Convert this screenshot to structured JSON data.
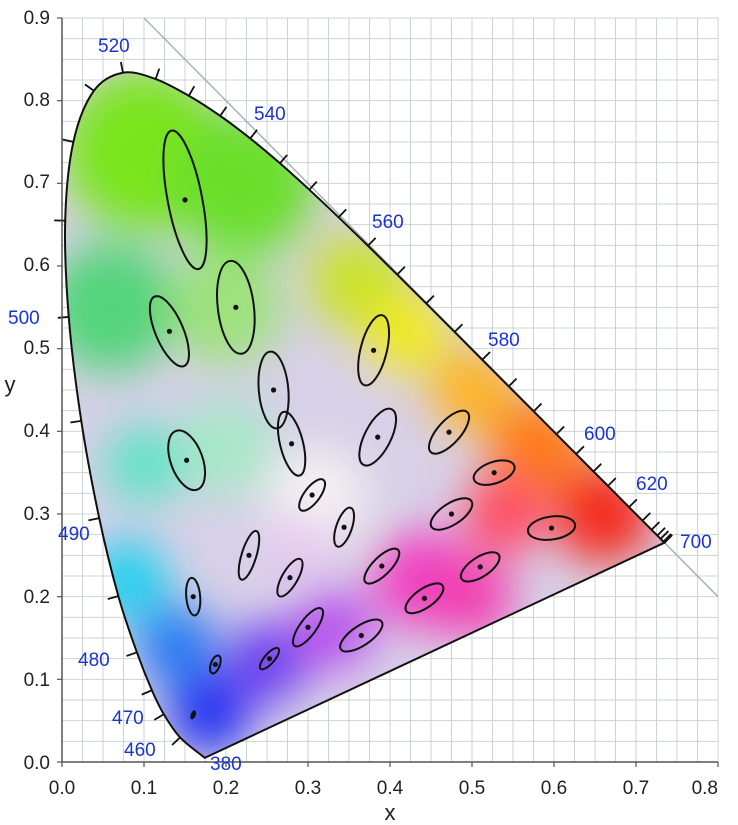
{
  "chart_data": {
    "type": "scatter",
    "title": "",
    "xlabel": "x",
    "ylabel": "y",
    "xlim": [
      0,
      0.8
    ],
    "ylim": [
      0,
      0.9
    ],
    "x_ticks": [
      "0.0",
      "0.1",
      "0.2",
      "0.3",
      "0.4",
      "0.5",
      "0.6",
      "0.7",
      "0.8"
    ],
    "y_ticks": [
      "0.0",
      "0.1",
      "0.2",
      "0.3",
      "0.4",
      "0.5",
      "0.6",
      "0.7",
      "0.8",
      "0.9"
    ],
    "grid_step": 0.025,
    "grid": true,
    "spectral_locus": [
      {
        "nm": 380,
        "x": 0.1741,
        "y": 0.005
      },
      {
        "nm": 460,
        "x": 0.144,
        "y": 0.0297
      },
      {
        "nm": 470,
        "x": 0.1241,
        "y": 0.0578
      },
      {
        "nm": 475,
        "x": 0.1096,
        "y": 0.0868
      },
      {
        "nm": 480,
        "x": 0.0913,
        "y": 0.1327
      },
      {
        "nm": 485,
        "x": 0.0687,
        "y": 0.2007
      },
      {
        "nm": 490,
        "x": 0.0454,
        "y": 0.295
      },
      {
        "nm": 495,
        "x": 0.0235,
        "y": 0.4127
      },
      {
        "nm": 500,
        "x": 0.0082,
        "y": 0.5384
      },
      {
        "nm": 505,
        "x": 0.0039,
        "y": 0.6548
      },
      {
        "nm": 510,
        "x": 0.0139,
        "y": 0.7502
      },
      {
        "nm": 515,
        "x": 0.0389,
        "y": 0.812
      },
      {
        "nm": 520,
        "x": 0.0743,
        "y": 0.8338
      },
      {
        "nm": 525,
        "x": 0.1142,
        "y": 0.8262
      },
      {
        "nm": 530,
        "x": 0.1547,
        "y": 0.8059
      },
      {
        "nm": 535,
        "x": 0.1929,
        "y": 0.7816
      },
      {
        "nm": 540,
        "x": 0.2296,
        "y": 0.7543
      },
      {
        "nm": 545,
        "x": 0.2658,
        "y": 0.7243
      },
      {
        "nm": 550,
        "x": 0.3016,
        "y": 0.6923
      },
      {
        "nm": 555,
        "x": 0.3373,
        "y": 0.6589
      },
      {
        "nm": 560,
        "x": 0.3731,
        "y": 0.6245
      },
      {
        "nm": 565,
        "x": 0.4087,
        "y": 0.5896
      },
      {
        "nm": 570,
        "x": 0.4441,
        "y": 0.5547
      },
      {
        "nm": 575,
        "x": 0.4788,
        "y": 0.5202
      },
      {
        "nm": 580,
        "x": 0.5125,
        "y": 0.4866
      },
      {
        "nm": 585,
        "x": 0.5448,
        "y": 0.4544
      },
      {
        "nm": 590,
        "x": 0.5752,
        "y": 0.4242
      },
      {
        "nm": 595,
        "x": 0.6029,
        "y": 0.3965
      },
      {
        "nm": 600,
        "x": 0.627,
        "y": 0.3725
      },
      {
        "nm": 605,
        "x": 0.6482,
        "y": 0.3514
      },
      {
        "nm": 610,
        "x": 0.6658,
        "y": 0.334
      },
      {
        "nm": 620,
        "x": 0.6915,
        "y": 0.3083
      },
      {
        "nm": 630,
        "x": 0.7079,
        "y": 0.292
      },
      {
        "nm": 640,
        "x": 0.719,
        "y": 0.2809
      },
      {
        "nm": 650,
        "x": 0.726,
        "y": 0.274
      },
      {
        "nm": 660,
        "x": 0.73,
        "y": 0.27
      },
      {
        "nm": 680,
        "x": 0.7334,
        "y": 0.2666
      },
      {
        "nm": 700,
        "x": 0.7347,
        "y": 0.2653
      }
    ],
    "wavelength_labels": [
      "520",
      "540",
      "560",
      "580",
      "600",
      "620",
      "700",
      "500",
      "490",
      "480",
      "470",
      "460",
      "380"
    ],
    "spectral_border_line": {
      "from": [
        0.1,
        0.9
      ],
      "to": [
        0.8,
        0.2
      ]
    },
    "ellipses": [
      {
        "x": 0.16,
        "y": 0.057,
        "a": 0.0045,
        "b": 0.0016,
        "angle": 68
      },
      {
        "x": 0.187,
        "y": 0.118,
        "a": 0.0115,
        "b": 0.0055,
        "angle": 70
      },
      {
        "x": 0.253,
        "y": 0.125,
        "a": 0.0165,
        "b": 0.006,
        "angle": 49
      },
      {
        "x": 0.15,
        "y": 0.68,
        "a": 0.086,
        "b": 0.021,
        "angle": 101
      },
      {
        "x": 0.131,
        "y": 0.521,
        "a": 0.046,
        "b": 0.017,
        "angle": 113
      },
      {
        "x": 0.212,
        "y": 0.55,
        "a": 0.057,
        "b": 0.022,
        "angle": 97
      },
      {
        "x": 0.258,
        "y": 0.45,
        "a": 0.047,
        "b": 0.018,
        "angle": 95
      },
      {
        "x": 0.152,
        "y": 0.365,
        "a": 0.038,
        "b": 0.0195,
        "angle": 110
      },
      {
        "x": 0.28,
        "y": 0.385,
        "a": 0.04,
        "b": 0.014,
        "angle": 104
      },
      {
        "x": 0.38,
        "y": 0.498,
        "a": 0.044,
        "b": 0.016,
        "angle": 76
      },
      {
        "x": 0.16,
        "y": 0.2,
        "a": 0.023,
        "b": 0.0085,
        "angle": 95
      },
      {
        "x": 0.228,
        "y": 0.25,
        "a": 0.031,
        "b": 0.009,
        "angle": 73
      },
      {
        "x": 0.305,
        "y": 0.323,
        "a": 0.023,
        "b": 0.0095,
        "angle": 53
      },
      {
        "x": 0.385,
        "y": 0.393,
        "a": 0.038,
        "b": 0.016,
        "angle": 63
      },
      {
        "x": 0.472,
        "y": 0.399,
        "a": 0.033,
        "b": 0.014,
        "angle": 48
      },
      {
        "x": 0.527,
        "y": 0.35,
        "a": 0.026,
        "b": 0.013,
        "angle": 19
      },
      {
        "x": 0.475,
        "y": 0.3,
        "a": 0.029,
        "b": 0.013,
        "angle": 33
      },
      {
        "x": 0.344,
        "y": 0.284,
        "a": 0.025,
        "b": 0.0095,
        "angle": 71
      },
      {
        "x": 0.597,
        "y": 0.283,
        "a": 0.029,
        "b": 0.014,
        "angle": 8
      },
      {
        "x": 0.278,
        "y": 0.223,
        "a": 0.026,
        "b": 0.0095,
        "angle": 60
      },
      {
        "x": 0.39,
        "y": 0.237,
        "a": 0.028,
        "b": 0.011,
        "angle": 45
      },
      {
        "x": 0.51,
        "y": 0.236,
        "a": 0.027,
        "b": 0.012,
        "angle": 33
      },
      {
        "x": 0.3,
        "y": 0.163,
        "a": 0.028,
        "b": 0.01,
        "angle": 54
      },
      {
        "x": 0.442,
        "y": 0.198,
        "a": 0.027,
        "b": 0.0115,
        "angle": 35
      },
      {
        "x": 0.365,
        "y": 0.153,
        "a": 0.03,
        "b": 0.012,
        "angle": 34
      }
    ]
  }
}
